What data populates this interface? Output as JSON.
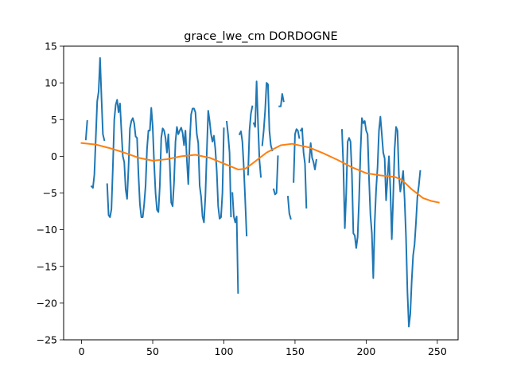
{
  "chart_data": {
    "type": "line",
    "title": "grace_lwe_cm DORDOGNE",
    "xlabel": "",
    "ylabel": "",
    "xlim": [
      -12.6,
      264.6
    ],
    "ylim": [
      -25,
      15
    ],
    "x_ticks": [
      0,
      50,
      100,
      150,
      200,
      250
    ],
    "y_ticks": [
      -25,
      -20,
      -15,
      -10,
      -5,
      0,
      5,
      10,
      15
    ],
    "grid": false,
    "legend": "none",
    "series": [
      {
        "color": "#1f77b4",
        "segments": [
          [
            [
              3,
              2.3
            ],
            [
              4,
              4.8
            ]
          ],
          [
            [
              7,
              -4.1
            ],
            [
              8,
              -4.3
            ],
            [
              9,
              -2.5
            ],
            [
              10,
              2.5
            ],
            [
              11,
              7.5
            ],
            [
              12,
              8.8
            ],
            [
              13,
              13.4
            ],
            [
              14,
              8.0
            ],
            [
              15,
              3.0
            ],
            [
              16,
              2.2
            ]
          ],
          [
            [
              18,
              -3.8
            ],
            [
              19,
              -8.0
            ],
            [
              20,
              -8.3
            ],
            [
              21,
              -7.2
            ],
            [
              22,
              -1.5
            ],
            [
              23,
              5.0
            ],
            [
              24,
              7.0
            ],
            [
              25,
              7.7
            ],
            [
              26,
              6.0
            ],
            [
              27,
              7.2
            ],
            [
              28,
              3.5
            ],
            [
              29,
              0.0
            ],
            [
              30,
              -0.8
            ],
            [
              31,
              -4.5
            ],
            [
              32,
              -5.8
            ],
            [
              33,
              -1.5
            ],
            [
              34,
              3.8
            ],
            [
              35,
              4.8
            ],
            [
              36,
              5.2
            ],
            [
              37,
              4.5
            ],
            [
              38,
              2.7
            ],
            [
              39,
              2.5
            ],
            [
              40,
              -2.5
            ],
            [
              41,
              -6.5
            ],
            [
              42,
              -8.3
            ],
            [
              43,
              -8.3
            ],
            [
              44,
              -6.5
            ],
            [
              45,
              -4.0
            ],
            [
              46,
              1.0
            ],
            [
              47,
              3.5
            ],
            [
              48,
              3.5
            ],
            [
              49,
              6.6
            ],
            [
              50,
              4.0
            ],
            [
              51,
              -1.0
            ],
            [
              52,
              -5.0
            ],
            [
              53,
              -7.3
            ],
            [
              54,
              -7.6
            ],
            [
              55,
              -4.0
            ],
            [
              56,
              2.5
            ],
            [
              57,
              3.8
            ],
            [
              58,
              3.5
            ],
            [
              59,
              2.5
            ],
            [
              60,
              0.5
            ],
            [
              61,
              3.0
            ],
            [
              62,
              -1.0
            ],
            [
              63,
              -6.3
            ],
            [
              64,
              -6.8
            ],
            [
              65,
              -3.5
            ],
            [
              66,
              2.0
            ],
            [
              67,
              4.0
            ],
            [
              68,
              3.0
            ],
            [
              69,
              3.5
            ],
            [
              70,
              3.9
            ],
            [
              71,
              3.2
            ],
            [
              72,
              1.5
            ],
            [
              73,
              3.5
            ],
            [
              74,
              -0.5
            ],
            [
              75,
              -3.8
            ],
            [
              76,
              2.0
            ],
            [
              77,
              5.7
            ],
            [
              78,
              6.5
            ],
            [
              79,
              6.5
            ],
            [
              80,
              6.0
            ],
            [
              81,
              3.0
            ],
            [
              82,
              1.8
            ],
            [
              83,
              -4.0
            ],
            [
              84,
              -5.5
            ],
            [
              85,
              -8.2
            ],
            [
              86,
              -9.0
            ],
            [
              87,
              -5.5
            ],
            [
              88,
              0.5
            ],
            [
              89,
              6.2
            ],
            [
              90,
              4.8
            ],
            [
              91,
              3.0
            ],
            [
              92,
              2.0
            ],
            [
              93,
              2.8
            ],
            [
              94,
              1.0
            ],
            [
              95,
              -2.0
            ],
            [
              96,
              -6.8
            ],
            [
              97,
              -8.5
            ],
            [
              98,
              -8.3
            ],
            [
              99,
              -5.0
            ],
            [
              100,
              3.8
            ]
          ],
          [
            [
              102,
              4.7
            ],
            [
              103,
              2.9
            ],
            [
              104,
              0.5
            ],
            [
              105,
              -8.2
            ]
          ],
          [
            [
              106,
              -5.0
            ],
            [
              107,
              -8.2
            ],
            [
              108,
              -9.0
            ],
            [
              109,
              -8.2
            ],
            [
              110,
              -18.6
            ]
          ],
          [
            [
              111,
              3.0
            ],
            [
              112,
              3.4
            ],
            [
              113,
              2.0
            ],
            [
              114,
              -1.5
            ],
            [
              115,
              -6.0
            ],
            [
              116,
              -10.8
            ]
          ],
          [
            [
              117,
              -2.5
            ],
            [
              118,
              3.5
            ],
            [
              119,
              5.8
            ],
            [
              120,
              6.8
            ]
          ],
          [
            [
              121,
              4.5
            ],
            [
              122,
              4.0
            ],
            [
              123,
              10.2
            ],
            [
              124,
              4.5
            ],
            [
              125,
              -0.5
            ],
            [
              126,
              -2.8
            ]
          ],
          [
            [
              127,
              1.5
            ],
            [
              128,
              3.5
            ],
            [
              129,
              6.2
            ],
            [
              130,
              10.0
            ],
            [
              131,
              9.8
            ],
            [
              132,
              3.5
            ],
            [
              133,
              1.5
            ],
            [
              134,
              0.8
            ]
          ],
          [
            [
              135,
              -4.5
            ],
            [
              136,
              -5.2
            ],
            [
              137,
              -5.0
            ],
            [
              138,
              0.0
            ]
          ],
          [
            [
              139,
              6.8
            ],
            [
              140,
              6.8
            ],
            [
              141,
              8.5
            ],
            [
              142,
              7.5
            ]
          ],
          [
            [
              145,
              -5.5
            ],
            [
              146,
              -7.8
            ],
            [
              147,
              -8.5
            ]
          ],
          [
            [
              149,
              -3.5
            ],
            [
              150,
              3.0
            ],
            [
              151,
              3.7
            ],
            [
              152,
              3.5
            ],
            [
              153,
              2.5
            ]
          ],
          [
            [
              154,
              3.5
            ],
            [
              155,
              3.8
            ],
            [
              156,
              0.5
            ],
            [
              157,
              -1.0
            ],
            [
              158,
              -7.0
            ]
          ],
          [
            [
              160,
              -0.8
            ],
            [
              161,
              1.8
            ],
            [
              162,
              -0.2
            ],
            [
              163,
              -0.8
            ],
            [
              164,
              -1.8
            ],
            [
              165,
              -0.5
            ]
          ],
          [
            [
              183,
              3.6
            ],
            [
              184,
              -1.5
            ],
            [
              185,
              -9.8
            ],
            [
              186,
              -5.0
            ],
            [
              187,
              2.0
            ],
            [
              188,
              2.5
            ],
            [
              189,
              2.0
            ],
            [
              190,
              -2.5
            ],
            [
              191,
              -10.5
            ],
            [
              192,
              -10.8
            ],
            [
              193,
              -12.5
            ],
            [
              194,
              -11.0
            ],
            [
              195,
              -6.0
            ],
            [
              196,
              0.5
            ],
            [
              197,
              5.2
            ],
            [
              198,
              4.5
            ],
            [
              199,
              4.8
            ],
            [
              200,
              3.5
            ],
            [
              201,
              3.0
            ],
            [
              202,
              -3.0
            ],
            [
              203,
              -8.0
            ],
            [
              204,
              -10.5
            ],
            [
              205,
              -16.6
            ],
            [
              206,
              -9.0
            ],
            [
              207,
              -4.5
            ],
            [
              208,
              -1.5
            ],
            [
              209,
              3.5
            ],
            [
              210,
              5.4
            ],
            [
              211,
              3.0
            ],
            [
              212,
              0.5
            ],
            [
              213,
              -0.3
            ],
            [
              214,
              -6.0
            ],
            [
              215,
              -3.0
            ],
            [
              216,
              0.0
            ],
            [
              217,
              -4.5
            ],
            [
              218,
              -11.3
            ],
            [
              219,
              -5.5
            ],
            [
              220,
              1.0
            ],
            [
              221,
              4.0
            ],
            [
              222,
              3.5
            ],
            [
              223,
              -2.5
            ],
            [
              224,
              -4.8
            ],
            [
              225,
              -3.5
            ],
            [
              226,
              -2.0
            ],
            [
              227,
              -5.8
            ],
            [
              228,
              -11.0
            ],
            [
              229,
              -18.5
            ],
            [
              230,
              -23.2
            ],
            [
              231,
              -21.5
            ],
            [
              232,
              -17.0
            ],
            [
              233,
              -13.5
            ],
            [
              234,
              -12.0
            ],
            [
              235,
              -9.0
            ],
            [
              236,
              -5.5
            ],
            [
              237,
              -4.0
            ],
            [
              238,
              -2.0
            ]
          ]
        ]
      },
      {
        "color": "#ff7f0e",
        "segments": [
          [
            [
              0,
              1.8
            ],
            [
              10,
              1.6
            ],
            [
              20,
              1.1
            ],
            [
              30,
              0.5
            ],
            [
              40,
              -0.2
            ],
            [
              50,
              -0.6
            ],
            [
              60,
              -0.4
            ],
            [
              70,
              0.0
            ],
            [
              80,
              0.2
            ],
            [
              90,
              -0.2
            ],
            [
              100,
              -1.0
            ],
            [
              110,
              -1.8
            ],
            [
              115,
              -1.7
            ],
            [
              120,
              -1.0
            ],
            [
              130,
              0.5
            ],
            [
              140,
              1.5
            ],
            [
              148,
              1.7
            ],
            [
              160,
              1.2
            ],
            [
              170,
              0.4
            ],
            [
              180,
              -0.5
            ],
            [
              190,
              -1.5
            ],
            [
              200,
              -2.3
            ],
            [
              210,
              -2.6
            ],
            [
              220,
              -2.8
            ],
            [
              225,
              -3.2
            ],
            [
              232,
              -4.5
            ],
            [
              240,
              -5.7
            ],
            [
              246,
              -6.1
            ],
            [
              251,
              -6.3
            ]
          ]
        ]
      }
    ]
  }
}
